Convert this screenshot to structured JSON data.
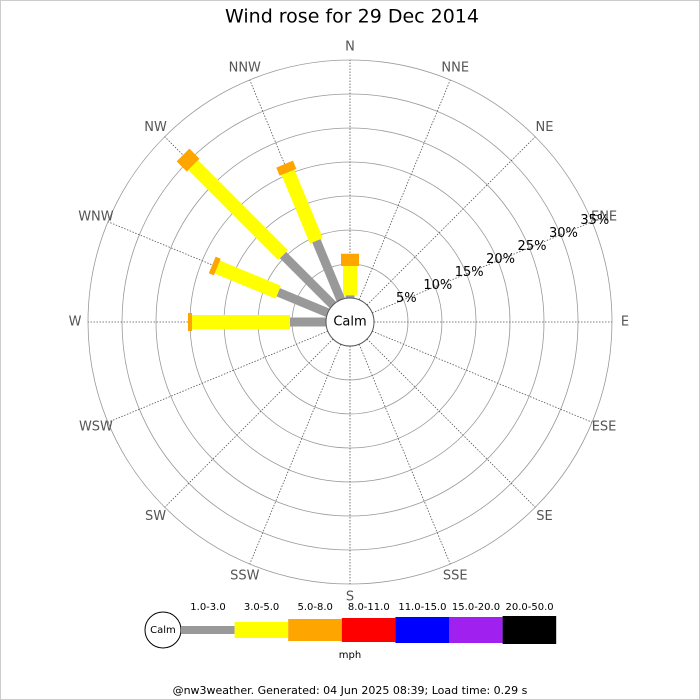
{
  "chart_data": {
    "type": "windrose",
    "title": "Wind rose for 29 Dec 2014",
    "directions": [
      "N",
      "NNE",
      "NE",
      "ENE",
      "E",
      "ESE",
      "SE",
      "SSE",
      "S",
      "SSW",
      "SW",
      "WSW",
      "W",
      "WNW",
      "NW",
      "NNW"
    ],
    "calm_label": "Calm",
    "series": [
      {
        "name": "1.0-3.0",
        "color": "#999999",
        "values": [
          0.4,
          0,
          0,
          0,
          0,
          0,
          0,
          0,
          0,
          0,
          0,
          0,
          5.3,
          7.9,
          10.4,
          9.4
        ]
      },
      {
        "name": "3.0-5.0",
        "color": "#ffff00",
        "values": [
          4.3,
          0,
          0,
          0,
          0,
          0,
          0,
          0,
          0,
          0,
          0,
          0,
          14.4,
          9.7,
          18.7,
          10.9
        ]
      },
      {
        "name": "5.0-8.0",
        "color": "#ffa500",
        "values": [
          1.8,
          0,
          0,
          0,
          0,
          0,
          0,
          0,
          0,
          0,
          0,
          0,
          0.6,
          0.8,
          2.1,
          1.3
        ]
      },
      {
        "name": "8.0-11.0",
        "color": "#ff0000",
        "values": [
          0,
          0,
          0,
          0,
          0,
          0,
          0,
          0,
          0,
          0,
          0,
          0,
          0,
          0,
          0,
          0
        ]
      },
      {
        "name": "11.0-15.0",
        "color": "#0000ff",
        "values": [
          0,
          0,
          0,
          0,
          0,
          0,
          0,
          0,
          0,
          0,
          0,
          0,
          0,
          0,
          0,
          0
        ]
      },
      {
        "name": "15.0-20.0",
        "color": "#a020f0",
        "values": [
          0,
          0,
          0,
          0,
          0,
          0,
          0,
          0,
          0,
          0,
          0,
          0,
          0,
          0,
          0,
          0
        ]
      },
      {
        "name": "20.0-50.0",
        "color": "#000000",
        "values": [
          0,
          0,
          0,
          0,
          0,
          0,
          0,
          0,
          0,
          0,
          0,
          0,
          0,
          0,
          0,
          0
        ]
      }
    ],
    "rlim": [
      0,
      35
    ],
    "rticks": [
      {
        "value": 5,
        "label": "5%"
      },
      {
        "value": 10,
        "label": "10%"
      },
      {
        "value": 15,
        "label": "15%"
      },
      {
        "value": 20,
        "label": "20%"
      },
      {
        "value": 25,
        "label": "25%"
      },
      {
        "value": 30,
        "label": "30%"
      },
      {
        "value": 35,
        "label": "35%"
      }
    ],
    "legend_unit": "mph"
  },
  "footer": "@nw3weather. Generated: 04 Jun 2025 08:39; Load time: 0.29 s"
}
